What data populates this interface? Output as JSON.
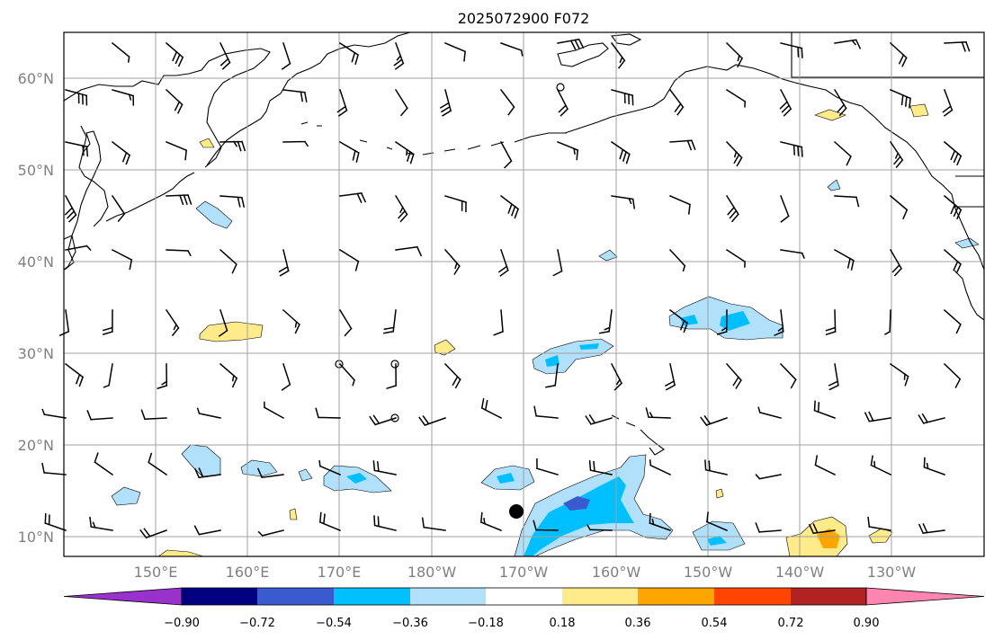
{
  "title": "2025072900 F072",
  "lon_labels": [
    "150°E",
    "160°E",
    "170°E",
    "180°W",
    "170°W",
    "160°W",
    "150°W",
    "140°W",
    "130°W"
  ],
  "lat_labels": [
    "60°N",
    "50°N",
    "40°N",
    "30°N",
    "20°N",
    "10°N"
  ],
  "colorbar": {
    "labels": [
      "−0.90",
      "−0.72",
      "−0.54",
      "−0.36",
      "−0.18",
      "0.18",
      "0.36",
      "0.54",
      "0.72",
      "0.90"
    ],
    "colors": [
      "#9932cc",
      "#000080",
      "#3a5bd0",
      "#00bfff",
      "#b0e0fa",
      "#ffffff",
      "#ffeb8a",
      "#ffa500",
      "#ff4500",
      "#b22222",
      "#ff85b0"
    ]
  },
  "map": {
    "lon_range": [
      "140°E",
      "120°W"
    ],
    "lat_range": [
      "8°N",
      "65°N"
    ],
    "grid": true,
    "storm_marker": {
      "lon": "171°W",
      "lat": "13°N"
    }
  }
}
